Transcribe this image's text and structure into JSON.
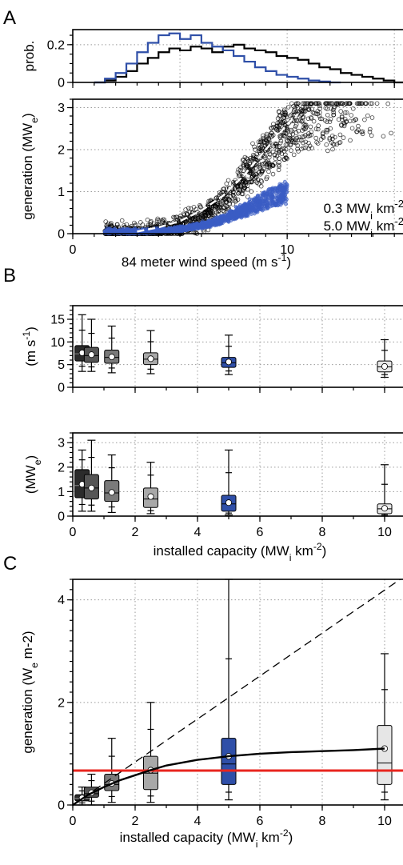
{
  "panel_letters": [
    "A",
    "B",
    "C"
  ],
  "chart_data": [
    {
      "panel": "A",
      "type": "line",
      "ylabel": "prob.",
      "xlim": [
        0,
        16
      ],
      "ylim": [
        0,
        0.28
      ],
      "yticks": [
        "0",
        "0.2"
      ],
      "series": [
        {
          "name": "0.3 MWi km-2",
          "color": "#000000",
          "x": [
            1,
            1.5,
            2,
            2.5,
            3,
            3.5,
            4,
            4.5,
            5,
            5.5,
            6,
            6.5,
            7,
            7.5,
            8,
            8.5,
            9,
            9.5,
            10,
            10.5,
            11,
            11.5,
            12,
            12.5,
            13,
            13.5,
            14,
            14.5,
            15
          ],
          "values": [
            0.0,
            0.01,
            0.03,
            0.06,
            0.1,
            0.13,
            0.16,
            0.18,
            0.17,
            0.19,
            0.18,
            0.16,
            0.19,
            0.2,
            0.18,
            0.17,
            0.16,
            0.14,
            0.13,
            0.12,
            0.1,
            0.08,
            0.07,
            0.05,
            0.04,
            0.03,
            0.02,
            0.01,
            0.0
          ]
        },
        {
          "name": "5.0 MWi km-2",
          "color": "#2f4fa8",
          "x": [
            1,
            1.5,
            2,
            2.5,
            3,
            3.5,
            4,
            4.5,
            5,
            5.5,
            6,
            6.5,
            7,
            7.5,
            8,
            8.5,
            9,
            9.5,
            10,
            10.5,
            11,
            11.5,
            12
          ],
          "values": [
            0.0,
            0.02,
            0.05,
            0.1,
            0.16,
            0.21,
            0.25,
            0.26,
            0.23,
            0.25,
            0.21,
            0.19,
            0.17,
            0.14,
            0.11,
            0.08,
            0.06,
            0.04,
            0.03,
            0.02,
            0.01,
            0.005,
            0.0
          ]
        }
      ]
    },
    {
      "panel": "A",
      "type": "scatter",
      "xlabel": "84 meter wind speed (m s-1)",
      "ylabel": "generation (MWe)",
      "xlim": [
        0,
        16
      ],
      "ylim": [
        0,
        3.2
      ],
      "xticks": [
        "0",
        "10"
      ],
      "yticks": [
        "0",
        "1",
        "2",
        "3"
      ],
      "legend": [
        "0.3 MWi km-2",
        "5.0 MWi km-2"
      ],
      "legend_position": "bottom-right",
      "series": [
        {
          "name": "0.3 MWi km-2",
          "color": "#000000",
          "wind_range": [
            1.5,
            15
          ],
          "generation_range": [
            0,
            3.1
          ]
        },
        {
          "name": "5.0 MWi km-2",
          "color": "#3a5cc4",
          "wind_range": [
            1.5,
            10
          ],
          "generation_range": [
            0,
            1.6
          ]
        }
      ],
      "mean_curve": {
        "x": [
          3,
          4,
          5,
          6,
          7,
          8,
          9,
          10,
          10.5
        ],
        "values": [
          0.05,
          0.15,
          0.3,
          0.55,
          0.9,
          1.4,
          2.0,
          2.6,
          2.85
        ]
      }
    },
    {
      "panel": "B",
      "type": "box",
      "ylabel": "(m s-1)",
      "xlim": [
        0,
        11
      ],
      "ylim": [
        0,
        18
      ],
      "yticks": [
        "0",
        "5",
        "10",
        "15"
      ],
      "categories": [
        0.3,
        0.6,
        1.25,
        2.5,
        5,
        10
      ],
      "boxes": [
        {
          "whisker_low": 3.5,
          "q1": 5.8,
          "median": 7.4,
          "q3": 9.2,
          "whisker_high": 16,
          "mean": 7.6,
          "fill": "#2b2b2b"
        },
        {
          "whisker_low": 3.5,
          "q1": 5.5,
          "median": 7.0,
          "q3": 8.8,
          "whisker_high": 15,
          "mean": 7.2,
          "fill": "#555555"
        },
        {
          "whisker_low": 3.2,
          "q1": 5.3,
          "median": 6.6,
          "q3": 8.2,
          "whisker_high": 13.5,
          "mean": 6.7,
          "fill": "#7a7a7a"
        },
        {
          "whisker_low": 3.0,
          "q1": 5.0,
          "median": 6.2,
          "q3": 7.6,
          "whisker_high": 12.5,
          "mean": 6.3,
          "fill": "#a8a8a8"
        },
        {
          "whisker_low": 2.8,
          "q1": 4.4,
          "median": 5.4,
          "q3": 6.6,
          "whisker_high": 11.5,
          "mean": 5.6,
          "fill": "#2f4fa8"
        },
        {
          "whisker_low": 2.2,
          "q1": 3.4,
          "median": 4.5,
          "q3": 5.8,
          "whisker_high": 10.5,
          "mean": 4.6,
          "fill": "#e6e6e6"
        }
      ]
    },
    {
      "panel": "B",
      "type": "box",
      "xlabel": "installed capacity (MWi km-2)",
      "ylabel": "(MWe)",
      "xlim": [
        0,
        11
      ],
      "ylim": [
        0,
        3.4
      ],
      "xticks": [
        "0",
        "2",
        "4",
        "6",
        "8",
        "10"
      ],
      "yticks": [
        "0",
        "1",
        "2",
        "3"
      ],
      "categories": [
        0.3,
        0.6,
        1.25,
        2.5,
        5,
        10
      ],
      "boxes": [
        {
          "whisker_low": 0.2,
          "q1": 0.75,
          "median": 1.25,
          "q3": 1.9,
          "whisker_high": 2.7,
          "mean": 1.3,
          "fill": "#2b2b2b"
        },
        {
          "whisker_low": 0.2,
          "q1": 0.7,
          "median": 1.15,
          "q3": 1.7,
          "whisker_high": 3.1,
          "mean": 1.15,
          "fill": "#555555"
        },
        {
          "whisker_low": 0.15,
          "q1": 0.6,
          "median": 0.95,
          "q3": 1.45,
          "whisker_high": 2.5,
          "mean": 0.97,
          "fill": "#7a7a7a"
        },
        {
          "whisker_low": 0.1,
          "q1": 0.35,
          "median": 0.7,
          "q3": 1.15,
          "whisker_high": 2.2,
          "mean": 0.8,
          "fill": "#a8a8a8"
        },
        {
          "whisker_low": 0.05,
          "q1": 0.2,
          "median": 0.5,
          "q3": 0.85,
          "whisker_high": 2.7,
          "mean": 0.55,
          "fill": "#2f4fa8"
        },
        {
          "whisker_low": 0.0,
          "q1": 0.1,
          "median": 0.3,
          "q3": 0.5,
          "whisker_high": 2.1,
          "mean": 0.32,
          "fill": "#e6e6e6"
        }
      ]
    },
    {
      "panel": "C",
      "type": "box",
      "xlabel": "installed capacity (MWi km-2)",
      "ylabel": "generation (We m-2)",
      "xlim": [
        0,
        11
      ],
      "ylim": [
        0,
        4.4
      ],
      "xticks": [
        "0",
        "2",
        "4",
        "6",
        "8",
        "10"
      ],
      "yticks": [
        "0",
        "2",
        "4"
      ],
      "categories": [
        0.3,
        0.6,
        1.25,
        2.5,
        5,
        10
      ],
      "boxes": [
        {
          "whisker_low": 0.0,
          "q1": 0.08,
          "median": 0.13,
          "q3": 0.2,
          "whisker_high": 0.35,
          "mean": 0.14,
          "fill": "#2b2b2b"
        },
        {
          "whisker_low": 0.0,
          "q1": 0.15,
          "median": 0.22,
          "q3": 0.35,
          "whisker_high": 0.6,
          "mean": 0.24,
          "fill": "#555555"
        },
        {
          "whisker_low": 0.05,
          "q1": 0.28,
          "median": 0.4,
          "q3": 0.6,
          "whisker_high": 1.3,
          "mean": 0.42,
          "fill": "#7a7a7a"
        },
        {
          "whisker_low": 0.05,
          "q1": 0.3,
          "median": 0.62,
          "q3": 0.95,
          "whisker_high": 2.0,
          "mean": 0.68,
          "fill": "#a8a8a8"
        },
        {
          "whisker_low": 0.1,
          "q1": 0.4,
          "median": 0.8,
          "q3": 1.3,
          "whisker_high": 4.4,
          "mean": 0.95,
          "fill": "#2f4fa8"
        },
        {
          "whisker_low": 0.1,
          "q1": 0.4,
          "median": 0.82,
          "q3": 1.55,
          "whisker_high": 2.95,
          "mean": 1.1,
          "fill": "#e6e6e6"
        }
      ],
      "fit_curve": {
        "x": [
          0,
          0.5,
          1,
          1.5,
          2,
          2.5,
          3,
          4,
          5,
          6,
          7,
          8,
          9,
          10
        ],
        "values": [
          0,
          0.2,
          0.35,
          0.48,
          0.58,
          0.68,
          0.77,
          0.88,
          0.95,
          1.0,
          1.03,
          1.05,
          1.07,
          1.1
        ]
      },
      "reference_line": {
        "x": [
          0,
          10.5
        ],
        "values": [
          0,
          4.4
        ],
        "style": "dashed",
        "color": "#000000"
      },
      "horizontal_line": {
        "value": 0.67,
        "color": "#e8251e"
      }
    }
  ]
}
